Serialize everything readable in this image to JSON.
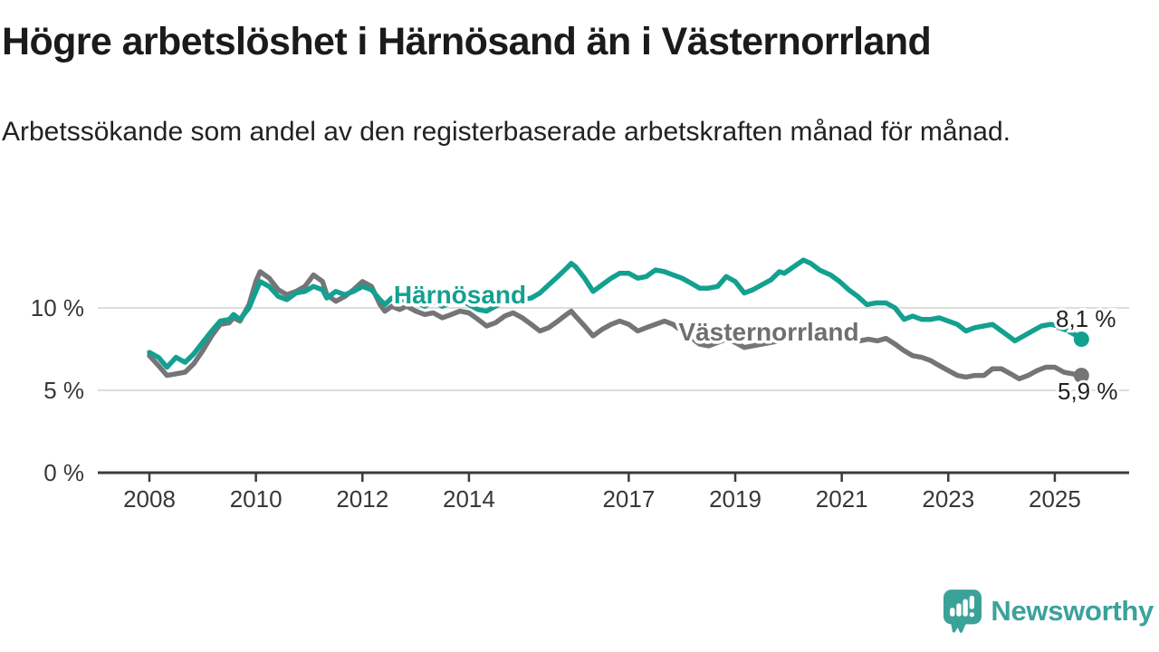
{
  "header": {
    "title": "Högre arbetslöshet i Härnösand än i Västernorrland",
    "subtitle": "Arbetssökande som andel av den registerbaserade arbetskraften månad för månad."
  },
  "chart_data": {
    "type": "line",
    "unit": "%",
    "x_axis": {
      "ticks": [
        2008,
        2010,
        2012,
        2014,
        2017,
        2019,
        2021,
        2023,
        2025
      ],
      "range": [
        2007.8,
        2025.8
      ]
    },
    "y_axis": {
      "tick_labels": [
        "0 %",
        "5 %",
        "10 %"
      ],
      "tick_values": [
        0,
        5,
        10
      ],
      "range": [
        0,
        13.5
      ],
      "grid": true
    },
    "series": [
      {
        "name": "Härnösand",
        "color": "#14a090",
        "end_label": "8,1 %",
        "end_value": 8.1,
        "points": [
          [
            2008.0,
            7.3
          ],
          [
            2008.17,
            7.0
          ],
          [
            2008.33,
            6.4
          ],
          [
            2008.5,
            7.0
          ],
          [
            2008.67,
            6.7
          ],
          [
            2008.83,
            7.2
          ],
          [
            2009.0,
            7.9
          ],
          [
            2009.17,
            8.6
          ],
          [
            2009.33,
            9.2
          ],
          [
            2009.5,
            9.3
          ],
          [
            2009.58,
            9.6
          ],
          [
            2009.7,
            9.3
          ],
          [
            2009.87,
            10.0
          ],
          [
            2010.0,
            11.0
          ],
          [
            2010.08,
            11.6
          ],
          [
            2010.25,
            11.3
          ],
          [
            2010.42,
            10.7
          ],
          [
            2010.58,
            10.5
          ],
          [
            2010.75,
            10.9
          ],
          [
            2010.92,
            11.0
          ],
          [
            2011.08,
            11.3
          ],
          [
            2011.25,
            11.1
          ],
          [
            2011.33,
            10.6
          ],
          [
            2011.5,
            11.0
          ],
          [
            2011.67,
            10.8
          ],
          [
            2011.83,
            11.0
          ],
          [
            2012.0,
            11.3
          ],
          [
            2012.17,
            11.1
          ],
          [
            2012.33,
            10.5
          ],
          [
            2012.42,
            10.2
          ],
          [
            2012.55,
            10.6
          ],
          [
            2012.7,
            10.4
          ],
          [
            2012.83,
            10.6
          ],
          [
            2013.0,
            10.4
          ],
          [
            2013.17,
            10.1
          ],
          [
            2013.33,
            10.4
          ],
          [
            2013.5,
            10.1
          ],
          [
            2013.67,
            10.3
          ],
          [
            2013.83,
            10.5
          ],
          [
            2014.0,
            10.2
          ],
          [
            2014.17,
            9.9
          ],
          [
            2014.33,
            9.8
          ],
          [
            2014.5,
            10.1
          ],
          [
            2014.67,
            10.4
          ],
          [
            2014.83,
            10.5
          ],
          [
            2015.0,
            10.5
          ],
          [
            2015.17,
            10.6
          ],
          [
            2015.33,
            10.9
          ],
          [
            2015.5,
            11.4
          ],
          [
            2015.67,
            11.9
          ],
          [
            2015.83,
            12.4
          ],
          [
            2015.92,
            12.7
          ],
          [
            2016.0,
            12.5
          ],
          [
            2016.17,
            11.8
          ],
          [
            2016.33,
            11.0
          ],
          [
            2016.5,
            11.4
          ],
          [
            2016.67,
            11.8
          ],
          [
            2016.83,
            12.1
          ],
          [
            2017.0,
            12.1
          ],
          [
            2017.17,
            11.8
          ],
          [
            2017.33,
            11.9
          ],
          [
            2017.5,
            12.3
          ],
          [
            2017.67,
            12.2
          ],
          [
            2017.83,
            12.0
          ],
          [
            2018.0,
            11.8
          ],
          [
            2018.17,
            11.5
          ],
          [
            2018.33,
            11.2
          ],
          [
            2018.5,
            11.2
          ],
          [
            2018.67,
            11.3
          ],
          [
            2018.83,
            11.9
          ],
          [
            2019.0,
            11.6
          ],
          [
            2019.17,
            10.9
          ],
          [
            2019.33,
            11.1
          ],
          [
            2019.5,
            11.4
          ],
          [
            2019.67,
            11.7
          ],
          [
            2019.83,
            12.2
          ],
          [
            2019.92,
            12.1
          ],
          [
            2020.1,
            12.5
          ],
          [
            2020.28,
            12.9
          ],
          [
            2020.42,
            12.7
          ],
          [
            2020.58,
            12.3
          ],
          [
            2020.79,
            12.0
          ],
          [
            2020.96,
            11.6
          ],
          [
            2021.13,
            11.1
          ],
          [
            2021.3,
            10.7
          ],
          [
            2021.47,
            10.2
          ],
          [
            2021.64,
            10.3
          ],
          [
            2021.83,
            10.3
          ],
          [
            2022.0,
            10.0
          ],
          [
            2022.17,
            9.3
          ],
          [
            2022.33,
            9.5
          ],
          [
            2022.5,
            9.3
          ],
          [
            2022.67,
            9.3
          ],
          [
            2022.83,
            9.4
          ],
          [
            2023.0,
            9.2
          ],
          [
            2023.17,
            9.0
          ],
          [
            2023.33,
            8.6
          ],
          [
            2023.5,
            8.8
          ],
          [
            2023.67,
            8.9
          ],
          [
            2023.83,
            9.0
          ],
          [
            2024.0,
            8.6
          ],
          [
            2024.17,
            8.2
          ],
          [
            2024.25,
            8.0
          ],
          [
            2024.42,
            8.3
          ],
          [
            2024.58,
            8.6
          ],
          [
            2024.75,
            8.9
          ],
          [
            2024.92,
            9.0
          ],
          [
            2025.08,
            8.9
          ],
          [
            2025.25,
            8.6
          ],
          [
            2025.42,
            8.3
          ],
          [
            2025.5,
            8.1
          ]
        ]
      },
      {
        "name": "Västernorrland",
        "color": "#757578",
        "end_label": "5,9 %",
        "end_value": 5.9,
        "points": [
          [
            2008.0,
            7.1
          ],
          [
            2008.17,
            6.5
          ],
          [
            2008.33,
            5.9
          ],
          [
            2008.5,
            6.0
          ],
          [
            2008.67,
            6.1
          ],
          [
            2008.83,
            6.6
          ],
          [
            2009.0,
            7.4
          ],
          [
            2009.17,
            8.3
          ],
          [
            2009.33,
            9.0
          ],
          [
            2009.5,
            9.1
          ],
          [
            2009.58,
            9.4
          ],
          [
            2009.7,
            9.2
          ],
          [
            2009.87,
            10.2
          ],
          [
            2010.0,
            11.6
          ],
          [
            2010.08,
            12.2
          ],
          [
            2010.25,
            11.8
          ],
          [
            2010.42,
            11.1
          ],
          [
            2010.58,
            10.8
          ],
          [
            2010.75,
            11.0
          ],
          [
            2010.92,
            11.3
          ],
          [
            2011.08,
            12.0
          ],
          [
            2011.25,
            11.6
          ],
          [
            2011.33,
            10.8
          ],
          [
            2011.5,
            10.4
          ],
          [
            2011.67,
            10.7
          ],
          [
            2011.83,
            11.1
          ],
          [
            2012.0,
            11.6
          ],
          [
            2012.17,
            11.3
          ],
          [
            2012.33,
            10.2
          ],
          [
            2012.42,
            9.8
          ],
          [
            2012.55,
            10.1
          ],
          [
            2012.7,
            9.9
          ],
          [
            2012.83,
            10.1
          ],
          [
            2013.0,
            9.8
          ],
          [
            2013.17,
            9.6
          ],
          [
            2013.33,
            9.7
          ],
          [
            2013.5,
            9.4
          ],
          [
            2013.67,
            9.6
          ],
          [
            2013.83,
            9.8
          ],
          [
            2014.0,
            9.7
          ],
          [
            2014.17,
            9.3
          ],
          [
            2014.33,
            8.9
          ],
          [
            2014.5,
            9.1
          ],
          [
            2014.67,
            9.5
          ],
          [
            2014.83,
            9.7
          ],
          [
            2015.0,
            9.4
          ],
          [
            2015.17,
            9.0
          ],
          [
            2015.33,
            8.6
          ],
          [
            2015.5,
            8.8
          ],
          [
            2015.67,
            9.2
          ],
          [
            2015.83,
            9.6
          ],
          [
            2015.92,
            9.8
          ],
          [
            2016.0,
            9.5
          ],
          [
            2016.17,
            8.9
          ],
          [
            2016.33,
            8.3
          ],
          [
            2016.5,
            8.7
          ],
          [
            2016.67,
            9.0
          ],
          [
            2016.83,
            9.2
          ],
          [
            2017.0,
            9.0
          ],
          [
            2017.17,
            8.6
          ],
          [
            2017.33,
            8.8
          ],
          [
            2017.5,
            9.0
          ],
          [
            2017.67,
            9.2
          ],
          [
            2017.83,
            9.0
          ],
          [
            2018.0,
            8.6
          ],
          [
            2018.17,
            8.2
          ],
          [
            2018.33,
            7.8
          ],
          [
            2018.5,
            7.7
          ],
          [
            2018.67,
            7.9
          ],
          [
            2018.83,
            8.1
          ],
          [
            2019.0,
            7.9
          ],
          [
            2019.17,
            7.6
          ],
          [
            2019.33,
            7.7
          ],
          [
            2019.5,
            7.8
          ],
          [
            2019.67,
            7.9
          ],
          [
            2019.83,
            8.0
          ],
          [
            2020.0,
            8.2
          ],
          [
            2020.17,
            8.5
          ],
          [
            2020.33,
            8.8
          ],
          [
            2020.5,
            8.7
          ],
          [
            2020.67,
            8.5
          ],
          [
            2020.83,
            8.4
          ],
          [
            2021.0,
            8.3
          ],
          [
            2021.17,
            8.1
          ],
          [
            2021.33,
            8.0
          ],
          [
            2021.5,
            8.1
          ],
          [
            2021.67,
            8.0
          ],
          [
            2021.83,
            8.15
          ],
          [
            2022.0,
            7.8
          ],
          [
            2022.17,
            7.4
          ],
          [
            2022.33,
            7.1
          ],
          [
            2022.5,
            7.0
          ],
          [
            2022.67,
            6.8
          ],
          [
            2022.83,
            6.5
          ],
          [
            2023.0,
            6.2
          ],
          [
            2023.17,
            5.9
          ],
          [
            2023.33,
            5.8
          ],
          [
            2023.5,
            5.9
          ],
          [
            2023.67,
            5.9
          ],
          [
            2023.83,
            6.3
          ],
          [
            2024.0,
            6.3
          ],
          [
            2024.17,
            6.0
          ],
          [
            2024.33,
            5.7
          ],
          [
            2024.5,
            5.9
          ],
          [
            2024.67,
            6.2
          ],
          [
            2024.83,
            6.4
          ],
          [
            2025.0,
            6.4
          ],
          [
            2025.17,
            6.1
          ],
          [
            2025.33,
            6.0
          ],
          [
            2025.5,
            5.9
          ]
        ]
      }
    ]
  },
  "branding": {
    "logo_text": "Newsworthy",
    "logo_color": "#3ba29a",
    "logo_mark": "speech-bubble-bar-chart-icon"
  }
}
